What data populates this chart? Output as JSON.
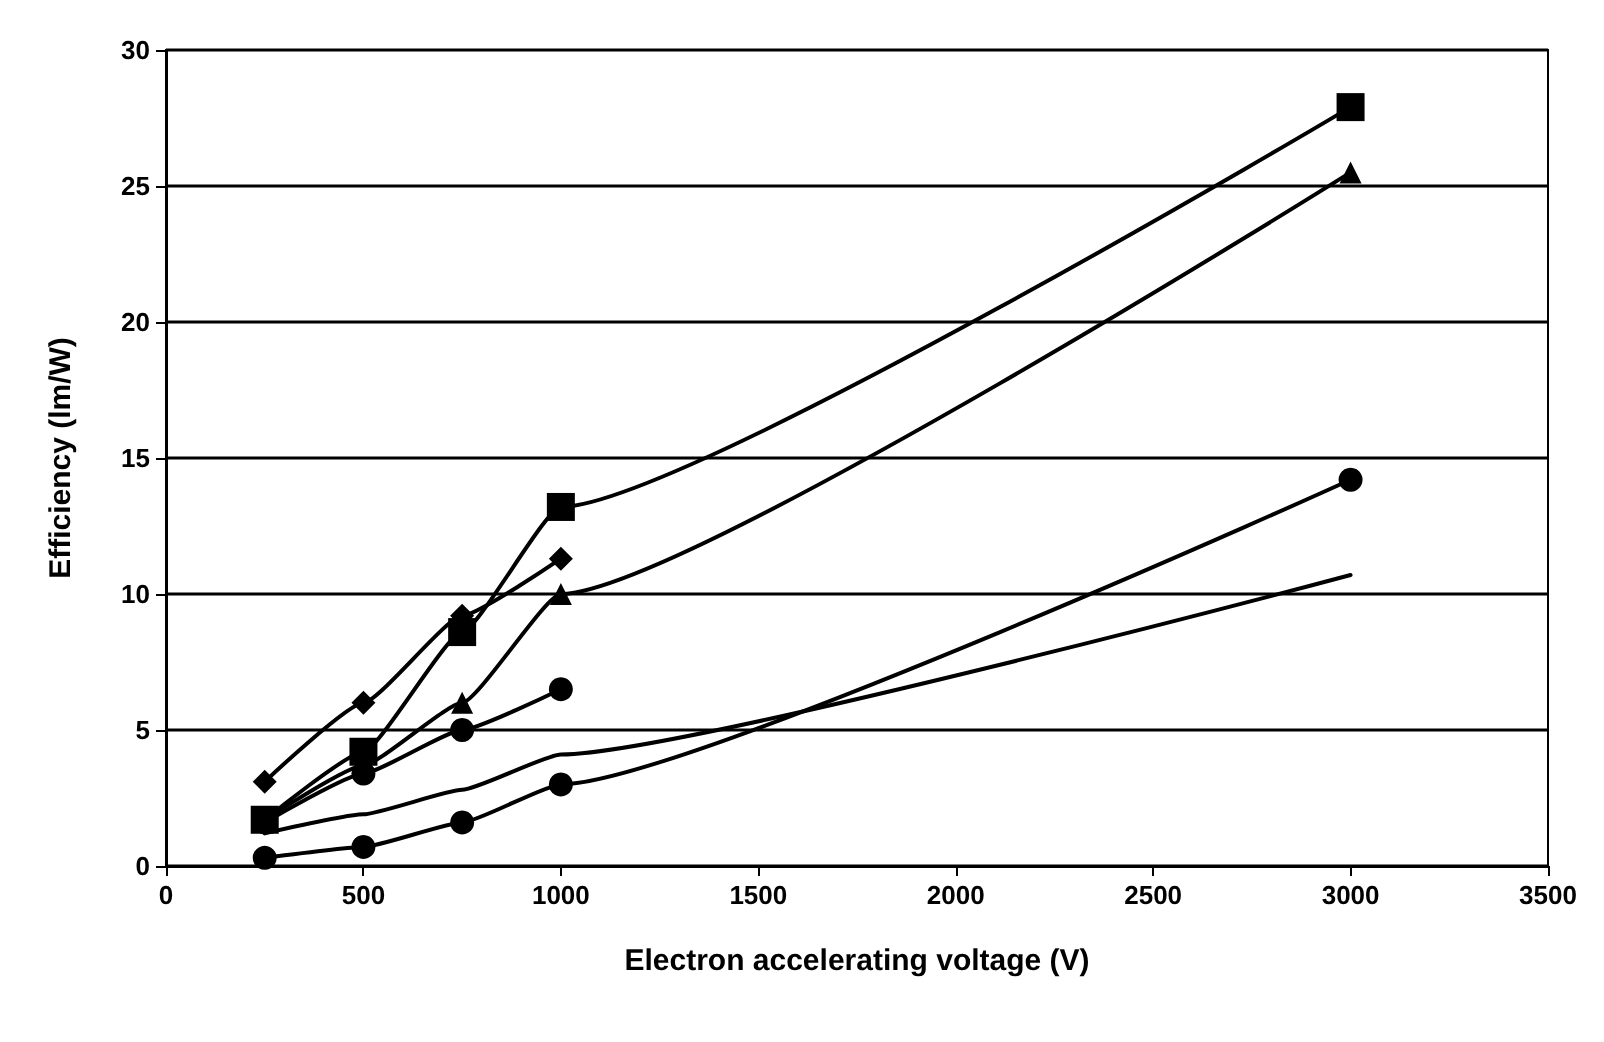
{
  "chart_data": {
    "type": "line",
    "xlabel": "Electron accelerating voltage (V)",
    "ylabel": "Efficiency (lm/W)",
    "xlim": [
      0,
      3500
    ],
    "xticks": [
      0,
      500,
      1000,
      1500,
      2000,
      2500,
      3000,
      3500
    ],
    "ylim": [
      0,
      30
    ],
    "yticks": [
      0,
      5,
      10,
      15,
      20,
      25,
      30
    ],
    "grid": "y",
    "line_style": "solid",
    "series": [
      {
        "color": "#000000",
        "marker": "square",
        "x": [
          250,
          500,
          750,
          1000,
          3000
        ],
        "values": [
          1.7,
          4.2,
          8.6,
          13.2,
          27.9
        ]
      },
      {
        "color": "#000000",
        "marker": "triangle",
        "x": [
          250,
          500,
          750,
          1000,
          3000
        ],
        "values": [
          1.7,
          3.7,
          6,
          10,
          25.5
        ]
      },
      {
        "color": "#000000",
        "marker": "diamond",
        "x": [
          250,
          500,
          750,
          1000
        ],
        "values": [
          3.1,
          6,
          9.2,
          11.3
        ]
      },
      {
        "color": "#000000",
        "marker": "circle",
        "x": [
          250,
          500,
          750,
          1000
        ],
        "values": [
          1.6,
          3.4,
          5,
          6.5
        ]
      },
      {
        "color": "#000000",
        "marker": "none",
        "x": [
          250,
          500,
          750,
          1000,
          3000
        ],
        "values": [
          1.2,
          1.9,
          2.8,
          4.1,
          10.7
        ]
      },
      {
        "color": "#000000",
        "marker": "circle",
        "x": [
          250,
          500,
          750,
          1000,
          3000
        ],
        "values": [
          0.3,
          0.7,
          1.6,
          3,
          14.2
        ]
      }
    ]
  }
}
